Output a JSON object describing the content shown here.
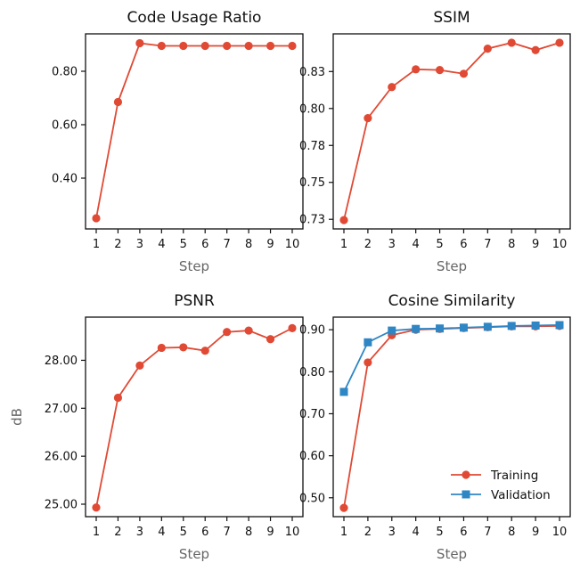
{
  "colors": {
    "training": "#e04a35",
    "validation": "#2f86c4"
  },
  "chart_data": [
    {
      "type": "line",
      "title": "Code Usage Ratio",
      "xlabel": "Step",
      "ylabel": "",
      "x": [
        1,
        2,
        3,
        4,
        5,
        6,
        7,
        8,
        9,
        10
      ],
      "xticks": [
        "1",
        "2",
        "3",
        "4",
        "5",
        "6",
        "7",
        "8",
        "9",
        "10"
      ],
      "ylim": [
        0.21,
        0.94
      ],
      "yticks": [
        0.4,
        0.6,
        0.8
      ],
      "ytick_labels": [
        "0.40",
        "0.60",
        "0.80"
      ],
      "series": [
        {
          "values": [
            0.25,
            0.685,
            0.905,
            0.895,
            0.895,
            0.895,
            0.895,
            0.895,
            0.895,
            0.895
          ],
          "color": "#e04a35",
          "marker": "circle"
        }
      ]
    },
    {
      "type": "line",
      "title": "SSIM",
      "xlabel": "Step",
      "ylabel": "",
      "x": [
        1,
        2,
        3,
        4,
        5,
        6,
        7,
        8,
        9,
        10
      ],
      "xticks": [
        "1",
        "2",
        "3",
        "4",
        "5",
        "6",
        "7",
        "8",
        "9",
        "10"
      ],
      "ylim": [
        0.7185,
        0.8505
      ],
      "yticks": [
        0.725,
        0.75,
        0.775,
        0.8,
        0.825
      ],
      "ytick_labels": [
        "0.73",
        "0.75",
        "0.78",
        "0.80",
        "0.83"
      ],
      "series": [
        {
          "values": [
            0.7245,
            0.7935,
            0.8145,
            0.8265,
            0.826,
            0.8235,
            0.8405,
            0.8445,
            0.8395,
            0.8445
          ],
          "color": "#e04a35",
          "marker": "circle"
        }
      ]
    },
    {
      "type": "line",
      "title": "PSNR",
      "xlabel": "Step",
      "ylabel": "dB",
      "x": [
        1,
        2,
        3,
        4,
        5,
        6,
        7,
        8,
        9,
        10
      ],
      "xticks": [
        "1",
        "2",
        "3",
        "4",
        "5",
        "6",
        "7",
        "8",
        "9",
        "10"
      ],
      "ylim": [
        24.74,
        28.9
      ],
      "yticks": [
        25,
        26,
        27,
        28
      ],
      "ytick_labels": [
        "25.00",
        "26.00",
        "27.00",
        "28.00"
      ],
      "series": [
        {
          "values": [
            24.93,
            27.22,
            27.89,
            28.26,
            28.27,
            28.2,
            28.59,
            28.62,
            28.44,
            28.67
          ],
          "color": "#e04a35",
          "marker": "circle"
        }
      ]
    },
    {
      "type": "line",
      "title": "Cosine Similarity",
      "xlabel": "Step",
      "ylabel": "",
      "x": [
        1,
        2,
        3,
        4,
        5,
        6,
        7,
        8,
        9,
        10
      ],
      "xticks": [
        "1",
        "2",
        "3",
        "4",
        "5",
        "6",
        "7",
        "8",
        "9",
        "10"
      ],
      "ylim": [
        0.455,
        0.93
      ],
      "yticks": [
        0.5,
        0.6,
        0.7,
        0.8,
        0.9
      ],
      "ytick_labels": [
        "0.50",
        "0.60",
        "0.70",
        "0.80",
        "0.90"
      ],
      "legend": "bottom-right",
      "series": [
        {
          "name": "Training",
          "values": [
            0.476,
            0.822,
            0.887,
            0.9,
            0.902,
            0.904,
            0.906,
            0.908,
            0.908,
            0.909
          ],
          "color": "#e04a35",
          "marker": "circle"
        },
        {
          "name": "Validation",
          "values": [
            0.752,
            0.87,
            0.898,
            0.902,
            0.903,
            0.905,
            0.907,
            0.909,
            0.91,
            0.911
          ],
          "color": "#2f86c4",
          "marker": "square"
        }
      ]
    }
  ]
}
